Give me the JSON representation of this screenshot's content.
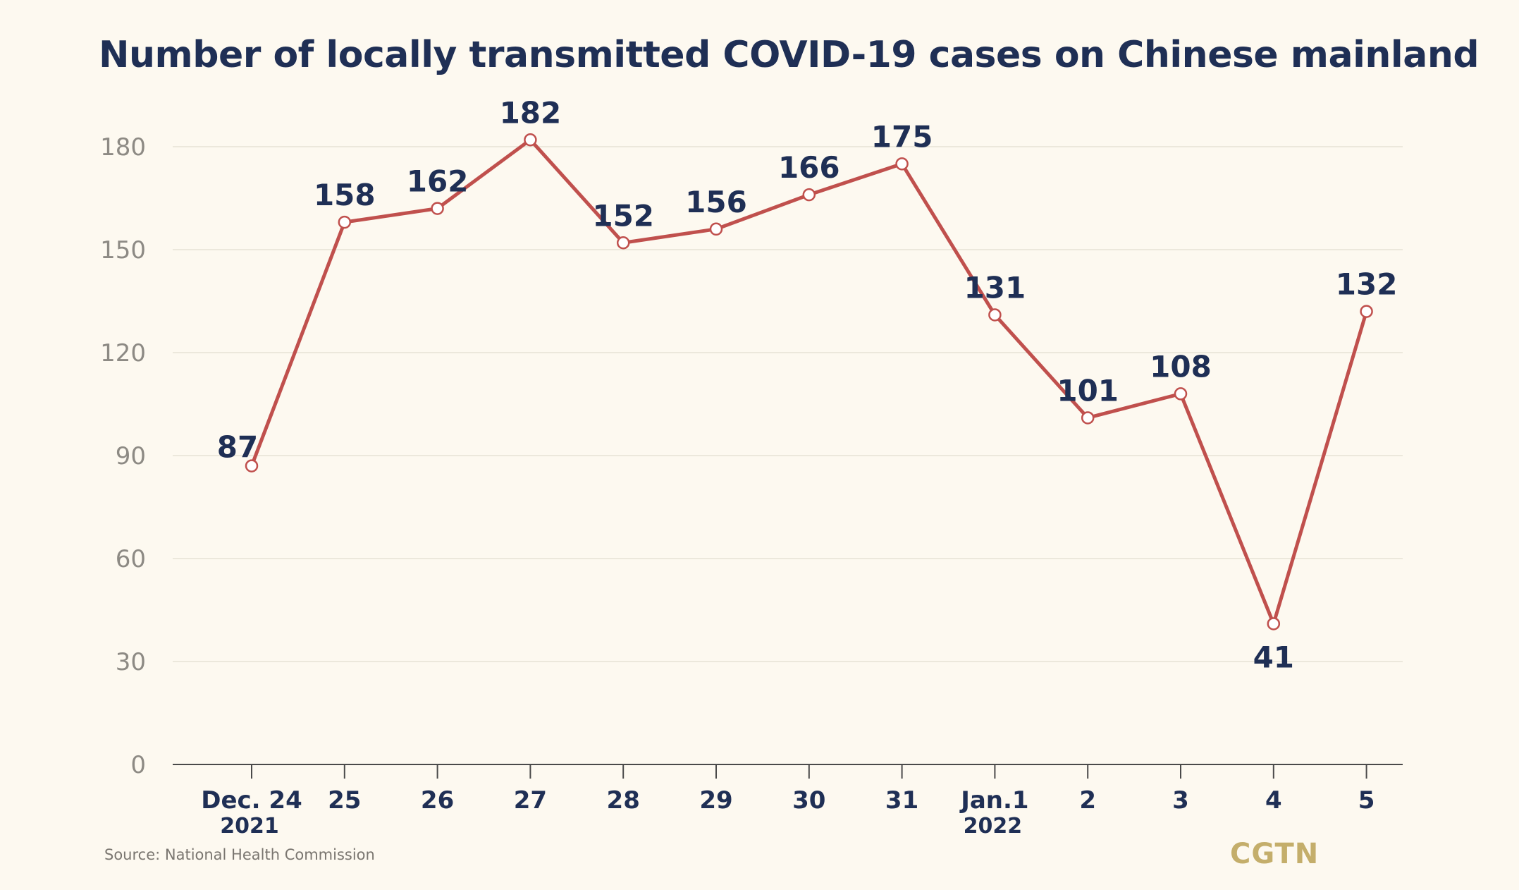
{
  "chart_data": {
    "type": "line",
    "title": "Number of locally transmitted COVID-19 cases on Chinese mainland",
    "xlabel": "",
    "ylabel": "",
    "categories": [
      {
        "label": "Dec. 24",
        "sub": "2021"
      },
      {
        "label": "25",
        "sub": ""
      },
      {
        "label": "26",
        "sub": ""
      },
      {
        "label": "27",
        "sub": ""
      },
      {
        "label": "28",
        "sub": ""
      },
      {
        "label": "29",
        "sub": ""
      },
      {
        "label": "30",
        "sub": ""
      },
      {
        "label": "31",
        "sub": ""
      },
      {
        "label": "Jan.1",
        "sub": "2022"
      },
      {
        "label": "2",
        "sub": ""
      },
      {
        "label": "3",
        "sub": ""
      },
      {
        "label": "4",
        "sub": ""
      },
      {
        "label": "5",
        "sub": ""
      }
    ],
    "series": [
      {
        "values": [
          87,
          158,
          162,
          182,
          152,
          156,
          166,
          175,
          131,
          101,
          108,
          41,
          132
        ],
        "color": "#c0504d"
      }
    ],
    "ylim": [
      0,
      180
    ],
    "yticks": [
      0,
      30,
      60,
      90,
      120,
      150,
      180
    ],
    "grid": true,
    "data_labels": true
  },
  "source": "Source: National Health Commission",
  "logo": "CGTN",
  "colors": {
    "background": "#fdf9f0",
    "line": "#c0504d",
    "title": "#1f2f55",
    "grid": "#e7e2d6",
    "logo": "#c4ae6b"
  }
}
